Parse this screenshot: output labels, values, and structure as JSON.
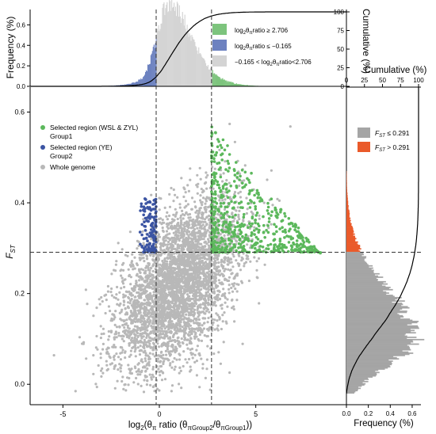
{
  "chart_data": [
    {
      "id": "main_scatter",
      "type": "scatter",
      "xlabel_parts": {
        "prefix": "log",
        "sub2": "2",
        "theta": "θ",
        "pi": "π",
        "ratio": " ratio (",
        "sub_a": "πGroup2",
        "sub_b": "πGroup1",
        "end": "))"
      },
      "ylabel": {
        "main": "F",
        "sub": "ST"
      },
      "xlim": [
        -6.7,
        9.7
      ],
      "ylim": [
        -0.045,
        0.655
      ],
      "xticks": [
        -5,
        0,
        5
      ],
      "yticks": [
        0.0,
        0.2,
        0.4,
        0.6
      ],
      "vlines": [
        -0.165,
        2.706
      ],
      "hline": 0.291,
      "legend_position": "top-left",
      "series": [
        {
          "name": "Selected region (WSL & ZYL)",
          "name2": "Group1",
          "color": "#5cb85c",
          "region": {
            "x": [
              2.706,
              8.4
            ],
            "y": [
              0.291,
              0.57
            ]
          }
        },
        {
          "name": "Selected region (YE)",
          "name2": "Group2",
          "color": "#3b54a3",
          "region": {
            "x": [
              -1.0,
              -0.165
            ],
            "y": [
              0.291,
              0.41
            ]
          }
        },
        {
          "name": "Whole genome",
          "color": "#b8b8b8",
          "center": [
            1.0,
            0.22
          ],
          "spread": [
            1.6,
            0.08
          ]
        }
      ]
    },
    {
      "id": "top_histogram",
      "type": "bar",
      "ylabel": "Frequency (%)",
      "yticks": [
        0.0,
        0.2,
        0.4,
        0.6
      ],
      "ylim": [
        0,
        0.75
      ],
      "right_axis": {
        "label": "Cumulative (%)",
        "ticks": [
          0,
          25,
          50,
          75,
          100
        ]
      },
      "peak": {
        "x": 0.4,
        "value": 0.68
      },
      "legend_position": "top-right",
      "legend": [
        {
          "color": "#7dc47d",
          "parts": [
            "log",
            "2",
            "θ",
            "π",
            "ratio ≥ 2.706"
          ]
        },
        {
          "color": "#6d82c0",
          "parts": [
            "log",
            "2",
            "θ",
            "π",
            "ratio ≤ −0.165"
          ]
        },
        {
          "color": "#d4d4d4",
          "parts": [
            "−0.165 < log",
            "2",
            "θ",
            "π",
            "ratio<2.706"
          ]
        }
      ]
    },
    {
      "id": "right_histogram",
      "type": "bar",
      "xlabel": "Frequency (%)",
      "xticks": [
        0.0,
        0.2,
        0.4,
        0.6
      ],
      "xlim": [
        0,
        0.68
      ],
      "top_axis": {
        "label": "Cumulative (%)",
        "ticks": [
          0,
          25,
          50,
          75,
          100
        ]
      },
      "peak": {
        "y": 0.1,
        "value": 0.62
      },
      "threshold": 0.291,
      "legend_position": "top-right",
      "legend": [
        {
          "color": "#a5a5a5",
          "main": "F",
          "sub": "ST",
          "rest": " ≤ 0.291"
        },
        {
          "color": "#ea5a2a",
          "main": "F",
          "sub": "ST",
          "rest": " > 0.291"
        }
      ]
    }
  ]
}
